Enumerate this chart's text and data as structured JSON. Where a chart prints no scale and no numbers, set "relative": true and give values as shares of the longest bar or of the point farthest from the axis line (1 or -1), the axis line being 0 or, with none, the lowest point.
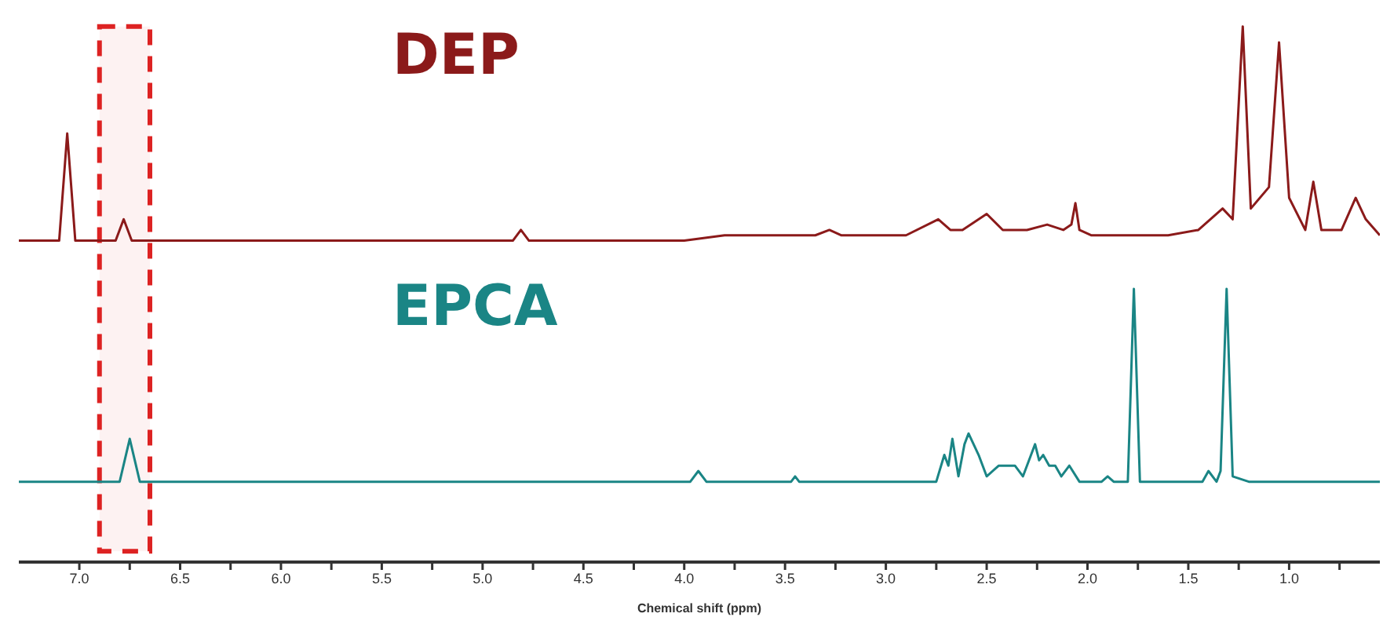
{
  "chart_data": {
    "type": "line",
    "relative": true,
    "xlim": [
      7.3,
      0.55
    ],
    "marker": "none",
    "legend": false,
    "xlabel": "Chemical shift (ppm)",
    "xticks": [
      {
        "value": 7,
        "label": "7.0"
      },
      {
        "value": 6.75,
        "label": null
      },
      {
        "value": 6.5,
        "label": "6.5"
      },
      {
        "value": 6.25,
        "label": null
      },
      {
        "value": 6,
        "label": "6.0"
      },
      {
        "value": 5.75,
        "label": null
      },
      {
        "value": 5.5,
        "label": "5.5"
      },
      {
        "value": 5.25,
        "label": null
      },
      {
        "value": 5,
        "label": "5.0"
      },
      {
        "value": 4.75,
        "label": null
      },
      {
        "value": 4.5,
        "label": "4.5"
      },
      {
        "value": 4.25,
        "label": null
      },
      {
        "value": 4,
        "label": "4.0"
      },
      {
        "value": 3.75,
        "label": null
      },
      {
        "value": 3.5,
        "label": "3.5"
      },
      {
        "value": 3.25,
        "label": null
      },
      {
        "value": 3,
        "label": "3.0"
      },
      {
        "value": 2.75,
        "label": null
      },
      {
        "value": 2.5,
        "label": "2.5"
      },
      {
        "value": 2.25,
        "label": null
      },
      {
        "value": 2,
        "label": "2.0"
      },
      {
        "value": 1.75,
        "label": null
      },
      {
        "value": 1.5,
        "label": "1.5"
      },
      {
        "value": 1.25,
        "label": null
      },
      {
        "value": 1,
        "label": "1.0"
      },
      {
        "value": 0.75,
        "label": null
      }
    ],
    "bands": [
      {
        "axis": "x",
        "from": 6.9,
        "to": 6.65,
        "color": "#dd2222"
      }
    ],
    "series": [
      {
        "name": "DEP",
        "color": "#8b1a1a",
        "x": [
          7.3,
          7.1,
          7.06,
          7.02,
          6.82,
          6.78,
          6.74,
          6.5,
          6.45,
          4.85,
          4.81,
          4.77,
          4.0,
          3.8,
          3.75,
          3.7,
          3.35,
          3.28,
          3.22,
          2.9,
          2.74,
          2.68,
          2.62,
          2.5,
          2.42,
          2.3,
          2.2,
          2.12,
          2.08,
          2.06,
          2.04,
          1.98,
          1.75,
          1.6,
          1.45,
          1.33,
          1.28,
          1.23,
          1.19,
          1.1,
          1.05,
          1.0,
          0.92,
          0.88,
          0.84,
          0.74,
          0.67,
          0.62,
          0.55
        ],
        "values": [
          0.6,
          0.6,
          0.8,
          0.6,
          0.6,
          0.64,
          0.6,
          0.6,
          0.6,
          0.6,
          0.62,
          0.6,
          0.6,
          0.61,
          0.61,
          0.61,
          0.61,
          0.62,
          0.61,
          0.61,
          0.64,
          0.62,
          0.62,
          0.65,
          0.62,
          0.62,
          0.63,
          0.62,
          0.63,
          0.67,
          0.62,
          0.61,
          0.61,
          0.61,
          0.62,
          0.66,
          0.64,
          1.0,
          0.66,
          0.7,
          0.97,
          0.68,
          0.62,
          0.71,
          0.62,
          0.62,
          0.68,
          0.64,
          0.61
        ]
      },
      {
        "name": "EPCA",
        "color": "#1a8585",
        "x": [
          7.3,
          6.8,
          6.75,
          6.7,
          3.97,
          3.93,
          3.89,
          3.47,
          3.45,
          3.43,
          2.75,
          2.71,
          2.69,
          2.67,
          2.64,
          2.61,
          2.59,
          2.54,
          2.5,
          2.44,
          2.41,
          2.36,
          2.32,
          2.28,
          2.26,
          2.24,
          2.22,
          2.19,
          2.16,
          2.13,
          2.09,
          2.04,
          1.93,
          1.9,
          1.87,
          1.8,
          1.77,
          1.74,
          1.43,
          1.4,
          1.36,
          1.34,
          1.31,
          1.28,
          1.2,
          0.55
        ],
        "values": [
          0.15,
          0.15,
          0.23,
          0.15,
          0.15,
          0.17,
          0.15,
          0.15,
          0.16,
          0.15,
          0.15,
          0.2,
          0.18,
          0.23,
          0.16,
          0.22,
          0.24,
          0.2,
          0.16,
          0.18,
          0.18,
          0.18,
          0.16,
          0.2,
          0.22,
          0.19,
          0.2,
          0.18,
          0.18,
          0.16,
          0.18,
          0.15,
          0.15,
          0.16,
          0.15,
          0.15,
          0.51,
          0.15,
          0.15,
          0.17,
          0.15,
          0.17,
          0.51,
          0.16,
          0.15,
          0.15
        ]
      }
    ]
  }
}
